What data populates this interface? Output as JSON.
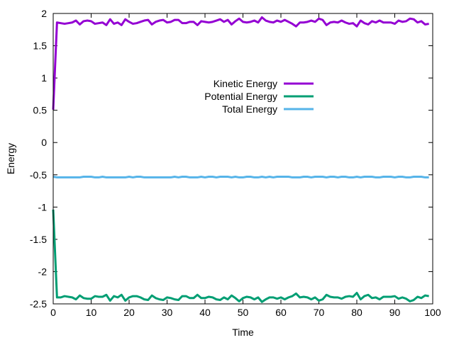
{
  "chart_data": {
    "type": "line",
    "title": "",
    "xlabel": "Time",
    "ylabel": "Energy",
    "xlim": [
      0,
      100
    ],
    "ylim": [
      -2.5,
      2
    ],
    "x_ticks": [
      0,
      10,
      20,
      30,
      40,
      50,
      60,
      70,
      80,
      90,
      100
    ],
    "y_ticks": [
      -2.5,
      -2,
      -1.5,
      -1,
      -0.5,
      0,
      0.5,
      1,
      1.5,
      2
    ],
    "x_tick_labels": [
      "0",
      "10",
      "20",
      "30",
      "40",
      "50",
      "60",
      "70",
      "80",
      "90",
      "100"
    ],
    "y_tick_labels": [
      "-2.5",
      "-2",
      "-1.5",
      "-1",
      "-0.5",
      "0",
      "0.5",
      "1",
      "1.5",
      "2"
    ],
    "legend_position": "upper-center",
    "grid": false,
    "x": [
      0,
      1,
      2,
      3,
      4,
      5,
      6,
      7,
      8,
      9,
      10,
      11,
      12,
      13,
      14,
      15,
      16,
      17,
      18,
      19,
      20,
      21,
      22,
      23,
      24,
      25,
      26,
      27,
      28,
      29,
      30,
      31,
      32,
      33,
      34,
      35,
      36,
      37,
      38,
      39,
      40,
      41,
      42,
      43,
      44,
      45,
      46,
      47,
      48,
      49,
      50,
      51,
      52,
      53,
      54,
      55,
      56,
      57,
      58,
      59,
      60,
      61,
      62,
      63,
      64,
      65,
      66,
      67,
      68,
      69,
      70,
      71,
      72,
      73,
      74,
      75,
      76,
      77,
      78,
      79,
      80,
      81,
      82,
      83,
      84,
      85,
      86,
      87,
      88,
      89,
      90,
      91,
      92,
      93,
      94,
      95,
      96,
      97,
      98,
      99
    ],
    "series": [
      {
        "name": "Kinetic Energy",
        "color": "#9400d3",
        "values": [
          0.51,
          1.86,
          1.85,
          1.84,
          1.85,
          1.86,
          1.89,
          1.83,
          1.88,
          1.89,
          1.88,
          1.84,
          1.85,
          1.86,
          1.82,
          1.91,
          1.84,
          1.86,
          1.82,
          1.91,
          1.87,
          1.84,
          1.85,
          1.87,
          1.89,
          1.9,
          1.83,
          1.87,
          1.89,
          1.9,
          1.86,
          1.87,
          1.9,
          1.9,
          1.85,
          1.85,
          1.87,
          1.87,
          1.82,
          1.88,
          1.87,
          1.86,
          1.87,
          1.89,
          1.91,
          1.87,
          1.9,
          1.83,
          1.88,
          1.92,
          1.87,
          1.86,
          1.87,
          1.89,
          1.86,
          1.94,
          1.89,
          1.87,
          1.86,
          1.89,
          1.87,
          1.9,
          1.87,
          1.84,
          1.8,
          1.86,
          1.86,
          1.87,
          1.89,
          1.87,
          1.92,
          1.9,
          1.82,
          1.86,
          1.87,
          1.86,
          1.89,
          1.86,
          1.84,
          1.85,
          1.8,
          1.89,
          1.85,
          1.83,
          1.88,
          1.86,
          1.89,
          1.86,
          1.86,
          1.86,
          1.84,
          1.89,
          1.87,
          1.88,
          1.92,
          1.91,
          1.86,
          1.88,
          1.83,
          1.84
        ]
      },
      {
        "name": "Potential Energy",
        "color": "#009e73",
        "values": [
          -1.04,
          -2.4,
          -2.4,
          -2.38,
          -2.39,
          -2.4,
          -2.43,
          -2.37,
          -2.41,
          -2.42,
          -2.42,
          -2.38,
          -2.39,
          -2.39,
          -2.36,
          -2.45,
          -2.38,
          -2.4,
          -2.36,
          -2.45,
          -2.4,
          -2.38,
          -2.38,
          -2.4,
          -2.43,
          -2.44,
          -2.37,
          -2.41,
          -2.43,
          -2.44,
          -2.4,
          -2.41,
          -2.43,
          -2.44,
          -2.38,
          -2.38,
          -2.41,
          -2.41,
          -2.36,
          -2.41,
          -2.41,
          -2.39,
          -2.4,
          -2.43,
          -2.44,
          -2.4,
          -2.43,
          -2.37,
          -2.41,
          -2.46,
          -2.41,
          -2.39,
          -2.4,
          -2.43,
          -2.4,
          -2.47,
          -2.43,
          -2.4,
          -2.4,
          -2.42,
          -2.4,
          -2.43,
          -2.4,
          -2.38,
          -2.34,
          -2.4,
          -2.39,
          -2.4,
          -2.43,
          -2.4,
          -2.45,
          -2.43,
          -2.36,
          -2.39,
          -2.4,
          -2.4,
          -2.42,
          -2.39,
          -2.38,
          -2.39,
          -2.33,
          -2.43,
          -2.38,
          -2.36,
          -2.41,
          -2.4,
          -2.43,
          -2.39,
          -2.39,
          -2.39,
          -2.38,
          -2.42,
          -2.4,
          -2.42,
          -2.46,
          -2.44,
          -2.39,
          -2.41,
          -2.37,
          -2.38
        ]
      },
      {
        "name": "Total Energy",
        "color": "#56b4e9",
        "values": [
          -0.53,
          -0.54,
          -0.54,
          -0.54,
          -0.54,
          -0.54,
          -0.54,
          -0.54,
          -0.53,
          -0.53,
          -0.53,
          -0.54,
          -0.54,
          -0.53,
          -0.54,
          -0.54,
          -0.54,
          -0.54,
          -0.54,
          -0.54,
          -0.53,
          -0.54,
          -0.53,
          -0.53,
          -0.54,
          -0.54,
          -0.54,
          -0.54,
          -0.54,
          -0.54,
          -0.54,
          -0.54,
          -0.53,
          -0.54,
          -0.53,
          -0.53,
          -0.54,
          -0.54,
          -0.54,
          -0.53,
          -0.54,
          -0.53,
          -0.53,
          -0.54,
          -0.53,
          -0.53,
          -0.53,
          -0.54,
          -0.53,
          -0.54,
          -0.54,
          -0.53,
          -0.53,
          -0.54,
          -0.54,
          -0.53,
          -0.54,
          -0.53,
          -0.54,
          -0.53,
          -0.53,
          -0.53,
          -0.53,
          -0.54,
          -0.54,
          -0.54,
          -0.53,
          -0.53,
          -0.54,
          -0.53,
          -0.53,
          -0.53,
          -0.54,
          -0.53,
          -0.53,
          -0.54,
          -0.53,
          -0.53,
          -0.54,
          -0.54,
          -0.53,
          -0.54,
          -0.53,
          -0.53,
          -0.53,
          -0.54,
          -0.54,
          -0.53,
          -0.53,
          -0.53,
          -0.54,
          -0.53,
          -0.53,
          -0.54,
          -0.54,
          -0.53,
          -0.53,
          -0.53,
          -0.54,
          -0.54
        ]
      }
    ]
  }
}
